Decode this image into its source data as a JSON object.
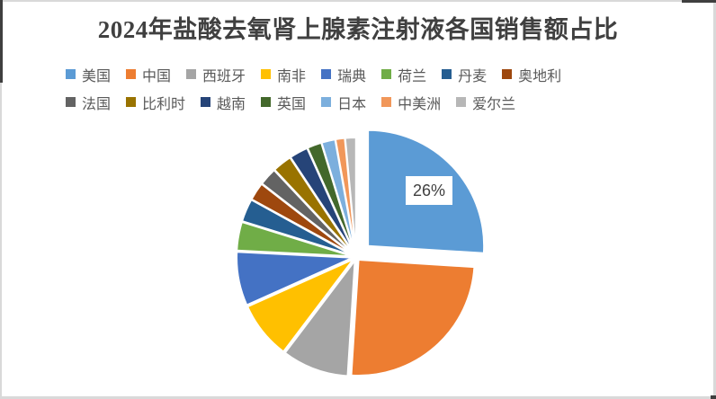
{
  "title": "2024年盐酸去氧肾上腺素注射液各国销售额占比",
  "chart_data": {
    "type": "pie",
    "title": "2024年盐酸去氧肾上腺素注射液各国销售额占比",
    "unit": "%",
    "legend_position": "top",
    "start_angle_deg": 0,
    "direction": "clockwise",
    "exploded_pie": true,
    "series": [
      {
        "key": "usa",
        "label": "美国",
        "value": 26.0,
        "color": "#5B9BD5",
        "exploded": true,
        "data_label": "26%"
      },
      {
        "key": "china",
        "label": "中国",
        "value": 25.0,
        "color": "#ED7D31"
      },
      {
        "key": "spain",
        "label": "西班牙",
        "value": 9.3,
        "color": "#A5A5A5"
      },
      {
        "key": "south-africa",
        "label": "南非",
        "value": 8.0,
        "color": "#FFC000"
      },
      {
        "key": "sweden",
        "label": "瑞典",
        "value": 7.5,
        "color": "#4472C4"
      },
      {
        "key": "netherlands",
        "label": "荷兰",
        "value": 4.0,
        "color": "#70AD47"
      },
      {
        "key": "denmark",
        "label": "丹麦",
        "value": 3.2,
        "color": "#255E91"
      },
      {
        "key": "austria",
        "label": "奥地利",
        "value": 2.5,
        "color": "#9E480E"
      },
      {
        "key": "france",
        "label": "法国",
        "value": 2.5,
        "color": "#636363"
      },
      {
        "key": "belgium",
        "label": "比利时",
        "value": 2.7,
        "color": "#997300"
      },
      {
        "key": "vietnam",
        "label": "越南",
        "value": 2.6,
        "color": "#264478"
      },
      {
        "key": "uk",
        "label": "英国",
        "value": 2.0,
        "color": "#43682B"
      },
      {
        "key": "japan",
        "label": "日本",
        "value": 1.9,
        "color": "#7CAFDD"
      },
      {
        "key": "central-america",
        "label": "中美洲",
        "value": 1.3,
        "color": "#F1975A"
      },
      {
        "key": "ireland",
        "label": "爱尔兰",
        "value": 1.5,
        "color": "#B7B7B7"
      }
    ],
    "legend_rows": [
      8,
      7
    ],
    "shown_data_labels": [
      {
        "series": "美国",
        "text": "26%"
      }
    ]
  },
  "colors": {
    "background": "#FFFFFF",
    "title_text": "#404040",
    "legend_text": "#595959",
    "data_label_text": "#404040",
    "data_label_bg": "#FFFFFF",
    "slice_separator": "#FFFFFF",
    "border_light": "#D9D9D9",
    "border_dark": "#3F3F3F"
  }
}
